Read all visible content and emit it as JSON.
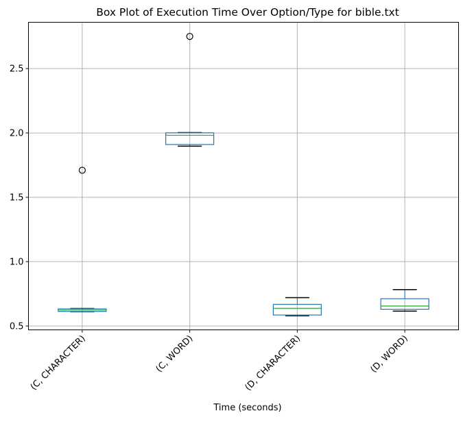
{
  "chart_data": {
    "type": "box",
    "title": "Box Plot of Execution Time Over Option/Type for bible.txt",
    "xlabel": "Time (seconds)",
    "ylabel": "",
    "ylim": [
      0.47,
      2.86
    ],
    "yticks": [
      0.5,
      1.0,
      1.5,
      2.0,
      2.5
    ],
    "ytick_labels": [
      "0.5",
      "1.0",
      "1.5",
      "2.0",
      "2.5"
    ],
    "grid": true,
    "categories": [
      "(C, CHARACTER)",
      "(C, WORD)",
      "(D, CHARACTER)",
      "(D, WORD)"
    ],
    "boxes": [
      {
        "category": "(C, CHARACTER)",
        "whisker_low": 0.612,
        "q1": 0.613,
        "median": 0.624,
        "q3": 0.633,
        "whisker_high": 0.636,
        "outliers": [
          1.71
        ]
      },
      {
        "category": "(C, WORD)",
        "whisker_low": 1.897,
        "q1": 1.91,
        "median": 1.982,
        "q3": 2.001,
        "whisker_high": 2.003,
        "outliers": [
          2.75
        ]
      },
      {
        "category": "(D, CHARACTER)",
        "whisker_low": 0.58,
        "q1": 0.585,
        "median": 0.637,
        "q3": 0.668,
        "whisker_high": 0.72,
        "outliers": []
      },
      {
        "category": "(D, WORD)",
        "whisker_low": 0.616,
        "q1": 0.63,
        "median": 0.655,
        "q3": 0.712,
        "whisker_high": 0.783,
        "outliers": []
      }
    ],
    "colors": {
      "box": "#1f77b4",
      "median": "#2ca02c",
      "whisker": "#000000",
      "grid": "#b0b0b0",
      "outlier": "#000000"
    }
  }
}
